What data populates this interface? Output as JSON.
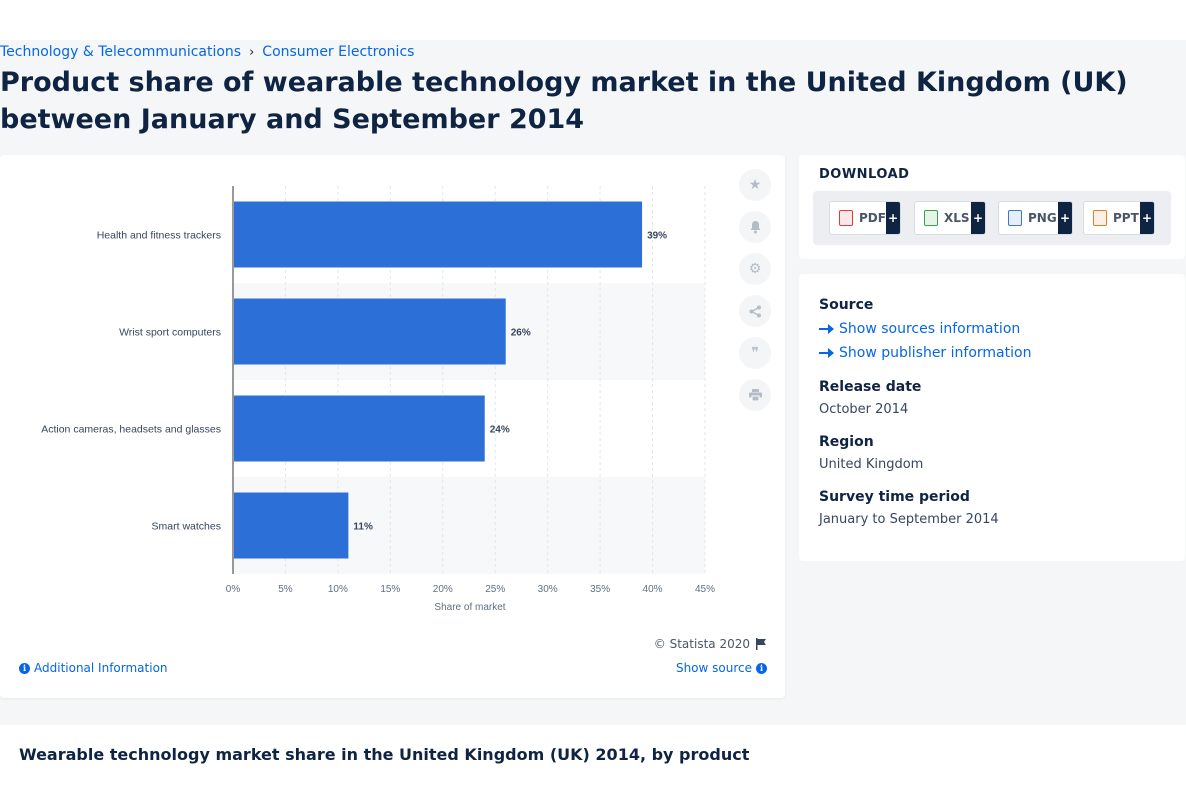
{
  "breadcrumb": {
    "item1": "Technology & Telecommunications",
    "separator": "›",
    "item2": "Consumer Electronics"
  },
  "page_title": "Product share of wearable technology market in the United Kingdom (UK) between January and September 2014",
  "chart_tools": [
    "star-icon",
    "bell-icon",
    "gear-icon",
    "share-icon",
    "quote-icon",
    "print-icon"
  ],
  "chart_footer": {
    "copyright": "© Statista 2020",
    "additional_info": "Additional Information",
    "show_source": "Show source"
  },
  "download": {
    "title": "DOWNLOAD",
    "buttons": [
      {
        "label": "PDF",
        "plus": "+",
        "color": "#e03a3a"
      },
      {
        "label": "XLS",
        "plus": "+",
        "color": "#3aa04a"
      },
      {
        "label": "PNG",
        "plus": "+",
        "color": "#3a79c8"
      },
      {
        "label": "PPT",
        "plus": "+",
        "color": "#e8792c"
      }
    ]
  },
  "meta": {
    "source_label": "Source",
    "show_sources": "Show sources information",
    "show_publisher": "Show publisher information",
    "release_label": "Release date",
    "release_value": "October 2014",
    "region_label": "Region",
    "region_value": "United Kingdom",
    "survey_label": "Survey time period",
    "survey_value": "January to September 2014"
  },
  "bottom_title": "Wearable technology market share in the United Kingdom (UK) 2014, by product",
  "chart_data": {
    "type": "bar",
    "orientation": "horizontal",
    "categories": [
      "Health and fitness trackers",
      "Wrist sport computers",
      "Action cameras, headsets and glasses",
      "Smart watches"
    ],
    "values": [
      39,
      26,
      24,
      11
    ],
    "value_labels": [
      "39%",
      "26%",
      "24%",
      "11%"
    ],
    "xlabel": "Share of market",
    "xlim": [
      0,
      45
    ],
    "ticks": [
      0,
      5,
      10,
      15,
      20,
      25,
      30,
      35,
      40,
      45
    ],
    "tick_labels": [
      "0%",
      "5%",
      "10%",
      "15%",
      "20%",
      "25%",
      "30%",
      "35%",
      "40%",
      "45%"
    ],
    "bar_color": "#2c6fd6",
    "grid": true
  }
}
